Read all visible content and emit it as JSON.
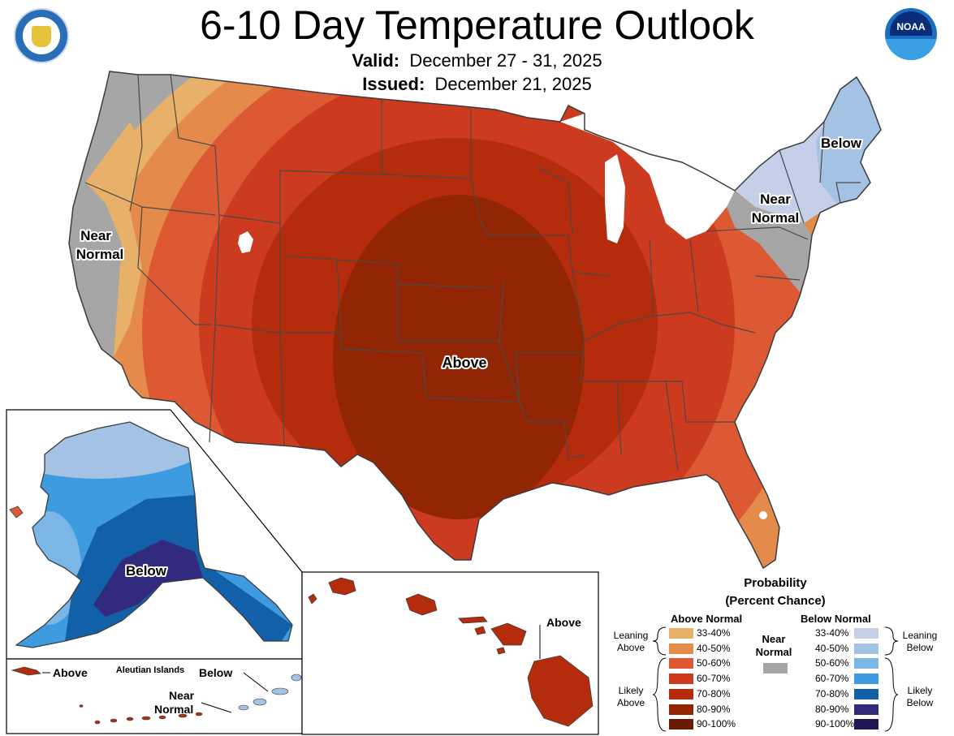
{
  "header": {
    "title": "6-10 Day Temperature Outlook",
    "valid_label": "Valid:",
    "valid_value": "December 27 - 31, 2025",
    "issued_label": "Issued:",
    "issued_value": "December 21, 2025"
  },
  "logos": {
    "left_icon": "department-of-commerce-seal",
    "right_icon": "noaa-logo",
    "right_text": "NOAA"
  },
  "map_labels": {
    "conus_above": "Above",
    "conus_below": "Below",
    "west_near_1": "Near",
    "west_near_2": "Normal",
    "east_near_1": "Near",
    "east_near_2": "Normal",
    "alaska_below": "Below",
    "aleutian_title": "Aleutian Islands",
    "aleutian_above": "Above",
    "aleutian_below": "Below",
    "aleutian_near_1": "Near",
    "aleutian_near_2": "Normal",
    "hawaii_above": "Above"
  },
  "legend": {
    "title_1": "Probability",
    "title_2": "(Percent Chance)",
    "above_header": "Above Normal",
    "below_header": "Below Normal",
    "near_1": "Near",
    "near_2": "Normal",
    "near_color": "#a6a6a6",
    "leaning_above_1": "Leaning",
    "leaning_above_2": "Above",
    "likely_above_1": "Likely",
    "likely_above_2": "Above",
    "leaning_below_1": "Leaning",
    "leaning_below_2": "Below",
    "likely_below_1": "Likely",
    "likely_below_2": "Below",
    "above": [
      {
        "label": "33-40%",
        "color": "#e8b16a"
      },
      {
        "label": "40-50%",
        "color": "#e48a4a"
      },
      {
        "label": "50-60%",
        "color": "#dd5934"
      },
      {
        "label": "60-70%",
        "color": "#cc3a1f"
      },
      {
        "label": "70-80%",
        "color": "#b52c0c"
      },
      {
        "label": "80-90%",
        "color": "#922503"
      },
      {
        "label": "90-100%",
        "color": "#6a1b03"
      }
    ],
    "below": [
      {
        "label": "33-40%",
        "color": "#c6cfe8"
      },
      {
        "label": "40-50%",
        "color": "#a3c2e4"
      },
      {
        "label": "50-60%",
        "color": "#7bb6e6"
      },
      {
        "label": "60-70%",
        "color": "#3f9be0"
      },
      {
        "label": "70-80%",
        "color": "#1261a8"
      },
      {
        "label": "80-90%",
        "color": "#322a7c"
      },
      {
        "label": "90-100%",
        "color": "#1f1654"
      }
    ]
  }
}
